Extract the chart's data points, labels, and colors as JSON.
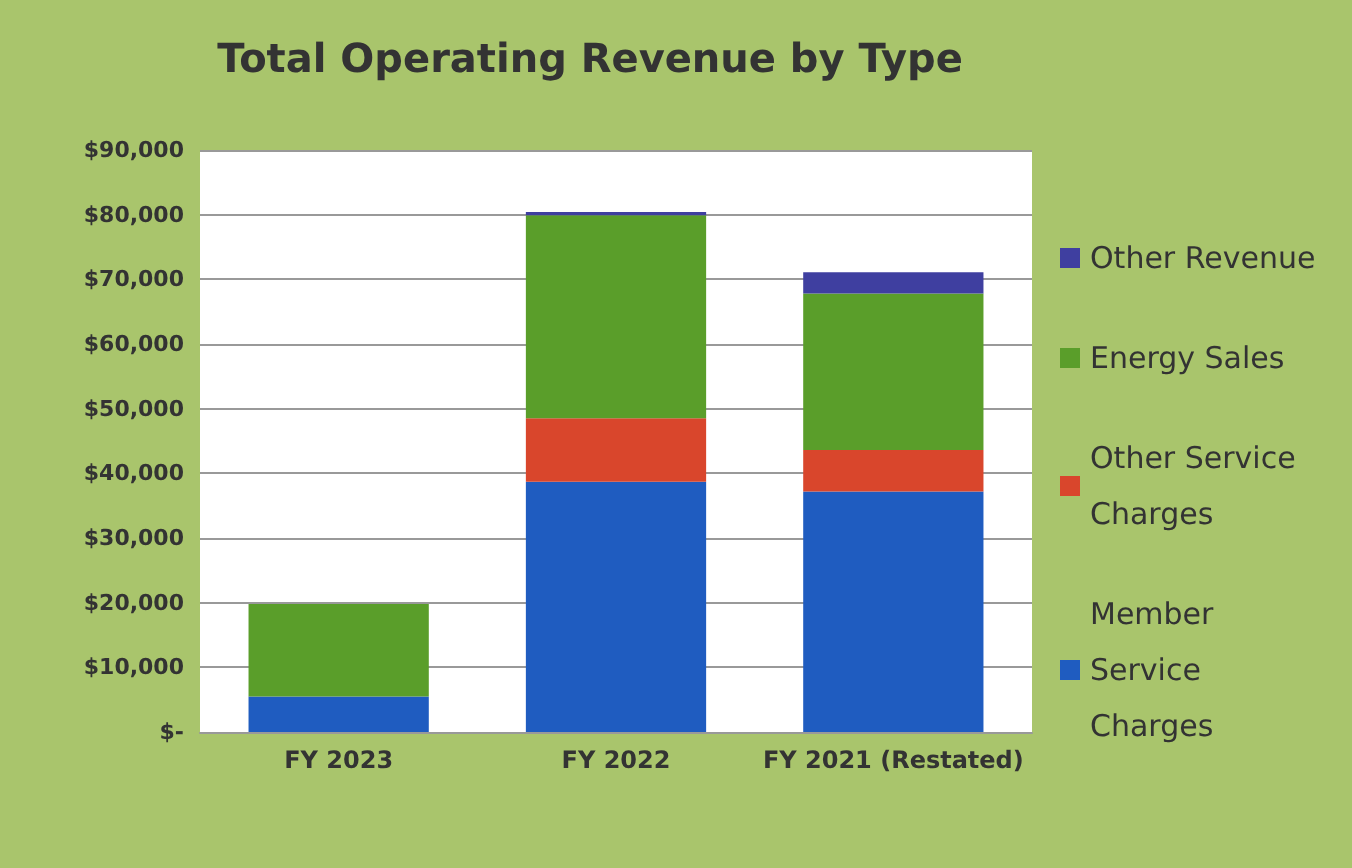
{
  "chart_data": {
    "type": "bar",
    "title": "Total Operating Revenue by Type",
    "stacked": true,
    "categories": [
      "FY 2023",
      "FY 2022",
      "FY 2021 (Restated)"
    ],
    "series": [
      {
        "name": "Member Service Charges",
        "color": "#1f5cc0",
        "values": [
          5500,
          38700,
          37200
        ]
      },
      {
        "name": "Other Service Charges",
        "color": "#d9462c",
        "values": [
          null,
          9800,
          6400
        ]
      },
      {
        "name": "Energy Sales",
        "color": "#5a9e2a",
        "values": [
          14300,
          31400,
          24200
        ]
      },
      {
        "name": "Other Revenue",
        "color": "#3f3fa0",
        "values": [
          null,
          500,
          3300
        ]
      }
    ],
    "ylim": [
      0,
      90000
    ],
    "yticks": [
      {
        "value": 0,
        "label": "$-"
      },
      {
        "value": 10000,
        "label": "$10,000"
      },
      {
        "value": 20000,
        "label": "$20,000"
      },
      {
        "value": 30000,
        "label": "$30,000"
      },
      {
        "value": 40000,
        "label": "$40,000"
      },
      {
        "value": 50000,
        "label": "$50,000"
      },
      {
        "value": 60000,
        "label": "$60,000"
      },
      {
        "value": 70000,
        "label": "$70,000"
      },
      {
        "value": 80000,
        "label": "$80,000"
      },
      {
        "value": 90000,
        "label": "$90,000"
      }
    ],
    "grid": "y",
    "legend": "right"
  }
}
